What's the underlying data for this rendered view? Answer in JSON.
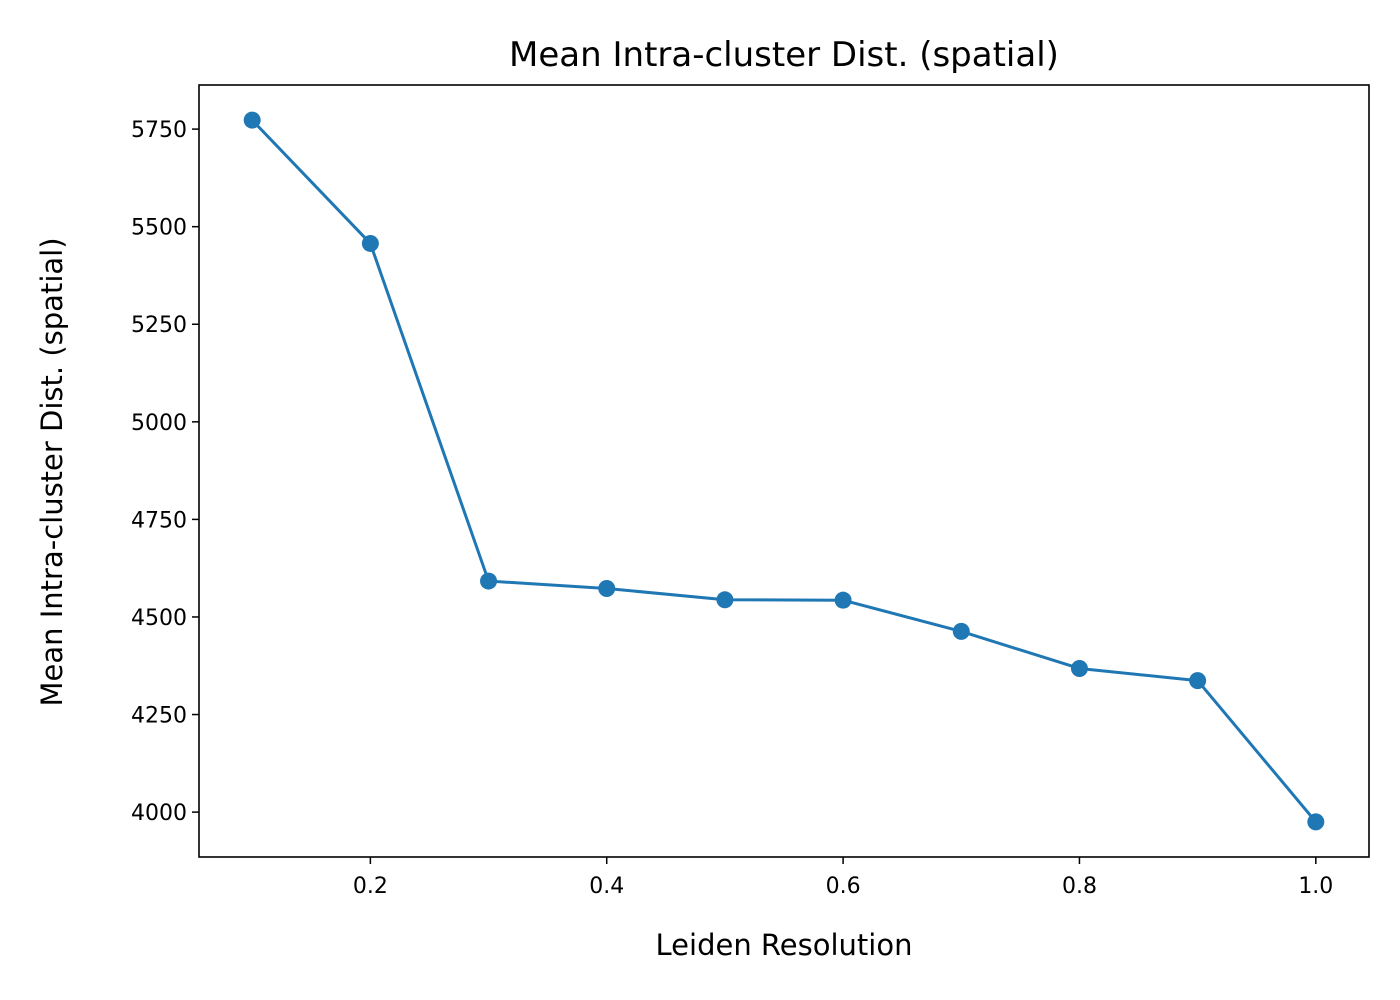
{
  "chart_data": {
    "type": "line",
    "title": "Mean Intra-cluster Dist. (spatial)",
    "xlabel": "Leiden Resolution",
    "ylabel": "Mean Intra-cluster Dist. (spatial)",
    "series": [
      {
        "name": "Mean Intra-cluster Dist. (spatial)",
        "x": [
          0.1,
          0.2,
          0.3,
          0.4,
          0.5,
          0.6,
          0.7,
          0.8,
          0.9,
          1.0
        ],
        "y": [
          5773,
          5457,
          4592,
          4573,
          4544,
          4543,
          4463,
          4368,
          4337,
          3975
        ]
      }
    ],
    "xlim": [
      0.055,
      1.045
    ],
    "ylim": [
      3885,
      5863
    ],
    "xticks": [
      0.2,
      0.4,
      0.6,
      0.8,
      1.0
    ],
    "xtick_labels": [
      "0.2",
      "0.4",
      "0.6",
      "0.8",
      "1.0"
    ],
    "yticks": [
      4000,
      4250,
      4500,
      4750,
      5000,
      5250,
      5500,
      5750
    ],
    "ytick_labels": [
      "4000",
      "4250",
      "4500",
      "4750",
      "5000",
      "5250",
      "5500",
      "5750"
    ],
    "grid": false,
    "marker": "circle",
    "line_color": "#1f77b4"
  }
}
